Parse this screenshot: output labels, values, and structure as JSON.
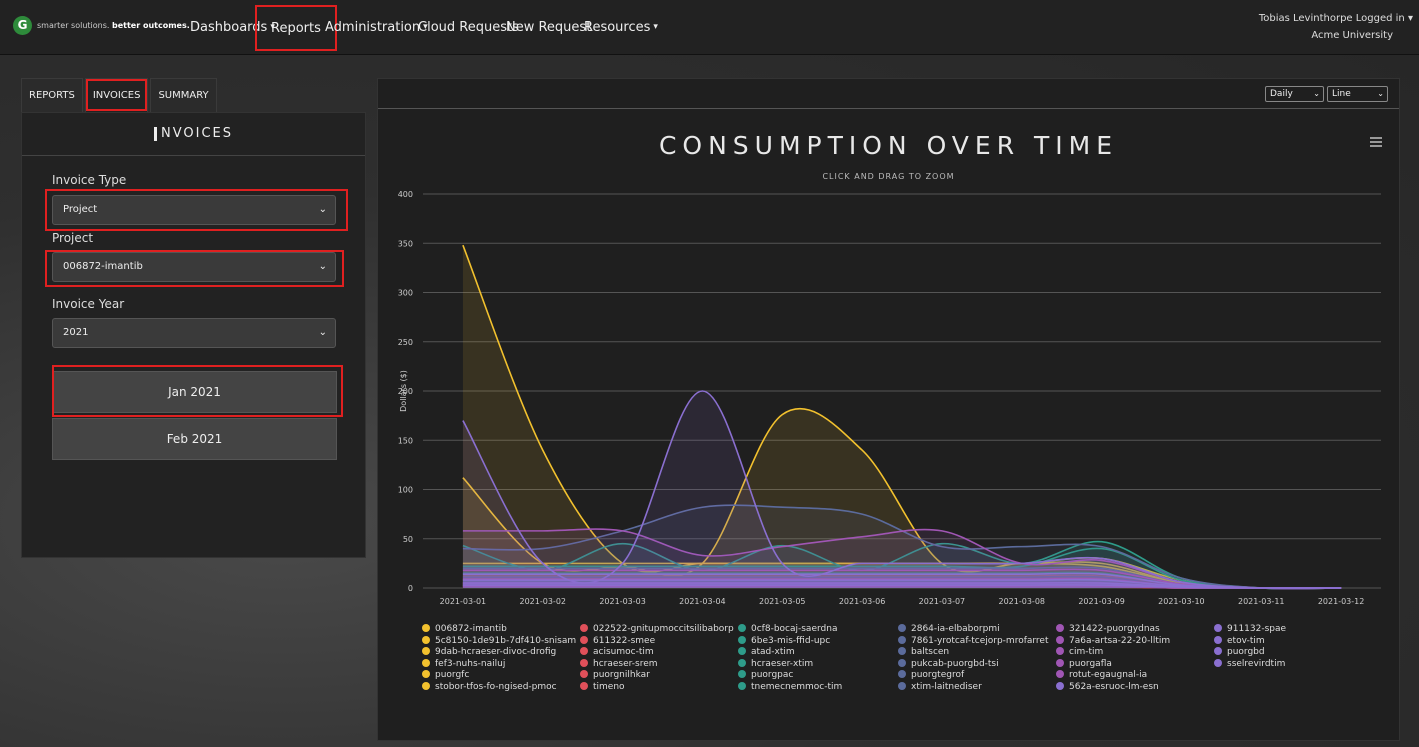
{
  "header": {
    "logo_text": "G",
    "tagline_plain": "smarter solutions. ",
    "tagline_bold": "better outcomes.",
    "nav": [
      {
        "label": "Dashboards",
        "dropdown": true
      },
      {
        "label": "Reports",
        "dropdown": false
      },
      {
        "label": "Administration",
        "dropdown": true
      },
      {
        "label": "Cloud Requests",
        "dropdown": false
      },
      {
        "label": "New Request",
        "dropdown": false
      },
      {
        "label": "Resources",
        "dropdown": true
      }
    ],
    "user": "Tobias Levinthorpe Logged in",
    "org": "Acme University"
  },
  "tabs": [
    "REPORTS",
    "INVOICES",
    "SUMMARY"
  ],
  "left_panel": {
    "title": "NVOICES",
    "invoice_type_label": "Invoice Type",
    "invoice_type_value": "Project",
    "project_label": "Project",
    "project_value": "006872-imantib",
    "year_label": "Invoice Year",
    "year_value": "2021",
    "months": [
      "Jan 2021",
      "Feb 2021"
    ]
  },
  "chart_controls": {
    "interval": "Daily",
    "chart_type": "Line"
  },
  "colors": {
    "yellow": "#f2c12e",
    "red": "#e0505a",
    "teal": "#2e9c8a",
    "slate": "#5b6b9c",
    "purple": "#a056b4",
    "violet": "#8a6fd0"
  },
  "chart_data": {
    "type": "line",
    "title": "CONSUMPTION OVER TIME",
    "subtitle": "CLICK AND DRAG TO ZOOM",
    "ylabel": "Dollars ($)",
    "ylim": [
      0,
      400
    ],
    "yticks": [
      0,
      50,
      100,
      150,
      200,
      250,
      300,
      350,
      400
    ],
    "x": [
      "2021-03-01",
      "2021-03-02",
      "2021-03-03",
      "2021-03-04",
      "2021-03-05",
      "2021-03-06",
      "2021-03-07",
      "2021-03-08",
      "2021-03-09",
      "2021-03-10",
      "2021-03-11",
      "2021-03-12"
    ],
    "series": [
      {
        "name": "006872-imantib",
        "color": "#f2c12e",
        "values": [
          348,
          140,
          25,
          25,
          25,
          25,
          25,
          25,
          22,
          5,
          0,
          0
        ]
      },
      {
        "name": "5c8150-1de91b-7df410-snisam",
        "color": "#f2c12e",
        "values": [
          112,
          25,
          22,
          25,
          176,
          140,
          25,
          25,
          25,
          5,
          0,
          0
        ]
      },
      {
        "name": "9dab-hcraeser-divoc-drofig",
        "color": "#f2c12e",
        "values": [
          25,
          25,
          25,
          25,
          25,
          25,
          25,
          25,
          30,
          8,
          0,
          0
        ]
      },
      {
        "name": "fef3-nuhs-nailuj",
        "color": "#f2c12e",
        "values": [
          8,
          8,
          8,
          8,
          8,
          8,
          8,
          8,
          8,
          2,
          0,
          0
        ]
      },
      {
        "name": "puorgfc",
        "color": "#f2c12e",
        "values": [
          5,
          5,
          5,
          5,
          5,
          5,
          5,
          5,
          5,
          1,
          0,
          0
        ]
      },
      {
        "name": "stobor-tfos-fo-ngised-pmoc",
        "color": "#f2c12e",
        "values": [
          3,
          3,
          3,
          3,
          3,
          3,
          3,
          3,
          3,
          1,
          0,
          0
        ]
      },
      {
        "name": "022522-gnitupmoccitsilibaborp",
        "color": "#e0505a",
        "values": [
          12,
          12,
          12,
          12,
          12,
          12,
          12,
          12,
          12,
          3,
          0,
          0
        ]
      },
      {
        "name": "611322-smee",
        "color": "#e0505a",
        "values": [
          10,
          10,
          10,
          10,
          10,
          10,
          10,
          10,
          10,
          2,
          0,
          0
        ]
      },
      {
        "name": "acisumoc-tim",
        "color": "#e0505a",
        "values": [
          6,
          6,
          6,
          6,
          6,
          6,
          6,
          6,
          6,
          1,
          0,
          0
        ]
      },
      {
        "name": "hcraeser-srem",
        "color": "#e0505a",
        "values": [
          4,
          4,
          4,
          4,
          4,
          4,
          4,
          4,
          4,
          1,
          0,
          0
        ]
      },
      {
        "name": "puorgnilhkar",
        "color": "#e0505a",
        "values": [
          2,
          2,
          2,
          2,
          2,
          2,
          2,
          2,
          2,
          0,
          0,
          0
        ]
      },
      {
        "name": "timeno",
        "color": "#e0505a",
        "values": [
          1,
          1,
          1,
          1,
          1,
          1,
          1,
          1,
          1,
          0,
          0,
          0
        ]
      },
      {
        "name": "0cf8-bocaj-saerdna",
        "color": "#2e9c8a",
        "values": [
          43,
          18,
          45,
          18,
          43,
          18,
          45,
          25,
          47,
          10,
          0,
          0
        ]
      },
      {
        "name": "6be3-mis-ffid-upc",
        "color": "#2e9c8a",
        "values": [
          22,
          22,
          22,
          22,
          22,
          22,
          22,
          22,
          40,
          8,
          0,
          0
        ]
      },
      {
        "name": "atad-xtim",
        "color": "#2e9c8a",
        "values": [
          15,
          15,
          15,
          15,
          15,
          15,
          15,
          15,
          15,
          3,
          0,
          0
        ]
      },
      {
        "name": "hcraeser-xtim",
        "color": "#2e9c8a",
        "values": [
          9,
          9,
          9,
          9,
          9,
          9,
          9,
          9,
          9,
          2,
          0,
          0
        ]
      },
      {
        "name": "puorgpac",
        "color": "#2e9c8a",
        "values": [
          7,
          7,
          7,
          7,
          7,
          7,
          7,
          7,
          7,
          1,
          0,
          0
        ]
      },
      {
        "name": "tnemecnemmoc-tim",
        "color": "#2e9c8a",
        "values": [
          3,
          3,
          3,
          3,
          3,
          3,
          3,
          3,
          3,
          1,
          0,
          0
        ]
      },
      {
        "name": "2864-ia-elbaborpmi",
        "color": "#5b6b9c",
        "values": [
          40,
          40,
          58,
          82,
          82,
          75,
          42,
          42,
          42,
          10,
          0,
          0
        ]
      },
      {
        "name": "7861-yrotcaf-tcejorp-mrofarret",
        "color": "#5b6b9c",
        "values": [
          20,
          20,
          20,
          20,
          20,
          20,
          20,
          20,
          20,
          4,
          0,
          0
        ]
      },
      {
        "name": "baltscen",
        "color": "#5b6b9c",
        "values": [
          11,
          11,
          11,
          11,
          11,
          11,
          11,
          11,
          11,
          2,
          0,
          0
        ]
      },
      {
        "name": "pukcab-puorgbd-tsi",
        "color": "#5b6b9c",
        "values": [
          6,
          6,
          6,
          6,
          6,
          6,
          6,
          6,
          6,
          1,
          0,
          0
        ]
      },
      {
        "name": "puorgtegrof",
        "color": "#5b6b9c",
        "values": [
          4,
          4,
          4,
          4,
          4,
          4,
          4,
          4,
          4,
          1,
          0,
          0
        ]
      },
      {
        "name": "xtim-laitnediser",
        "color": "#5b6b9c",
        "values": [
          2,
          2,
          2,
          2,
          2,
          2,
          2,
          2,
          2,
          0,
          0,
          0
        ]
      },
      {
        "name": "321422-puorgydnas",
        "color": "#a056b4",
        "values": [
          58,
          58,
          58,
          33,
          42,
          52,
          58,
          25,
          28,
          6,
          0,
          0
        ]
      },
      {
        "name": "7a6a-artsa-22-20-lltim",
        "color": "#a056b4",
        "values": [
          18,
          18,
          18,
          18,
          18,
          18,
          18,
          18,
          18,
          4,
          0,
          0
        ]
      },
      {
        "name": "cim-tim",
        "color": "#a056b4",
        "values": [
          9,
          9,
          9,
          9,
          9,
          9,
          9,
          9,
          9,
          2,
          0,
          0
        ]
      },
      {
        "name": "puorgafla",
        "color": "#a056b4",
        "values": [
          5,
          5,
          5,
          5,
          5,
          5,
          5,
          5,
          5,
          1,
          0,
          0
        ]
      },
      {
        "name": "rotut-egaugnal-ia",
        "color": "#a056b4",
        "values": [
          2,
          2,
          2,
          2,
          2,
          2,
          2,
          2,
          2,
          0,
          0,
          0
        ]
      },
      {
        "name": "562a-esruoc-lm-esn",
        "color": "#8a6fd0",
        "values": [
          170,
          25,
          25,
          200,
          25,
          25,
          25,
          25,
          30,
          6,
          0,
          0
        ]
      },
      {
        "name": "911132-spae",
        "color": "#8a6fd0",
        "values": [
          14,
          14,
          14,
          14,
          14,
          14,
          14,
          14,
          14,
          3,
          0,
          0
        ]
      },
      {
        "name": "etov-tim",
        "color": "#8a6fd0",
        "values": [
          8,
          8,
          8,
          8,
          8,
          8,
          8,
          8,
          8,
          2,
          0,
          0
        ]
      },
      {
        "name": "puorgbd",
        "color": "#8a6fd0",
        "values": [
          5,
          5,
          5,
          5,
          5,
          5,
          5,
          5,
          5,
          1,
          0,
          0
        ]
      },
      {
        "name": "sselrevirdtim",
        "color": "#8a6fd0",
        "values": [
          3,
          3,
          3,
          3,
          3,
          3,
          3,
          3,
          3,
          1,
          0,
          0
        ]
      }
    ]
  }
}
